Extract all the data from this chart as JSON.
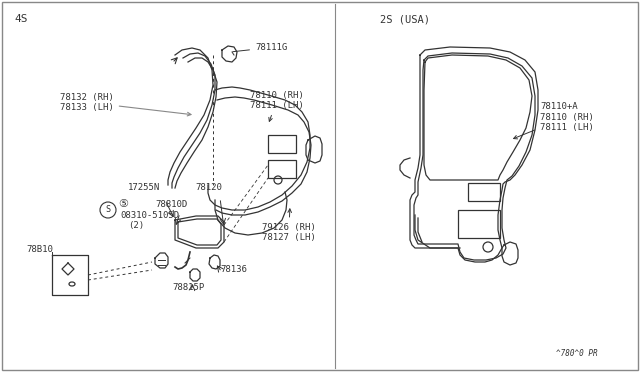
{
  "bg_color": "#f5f5f0",
  "line_color": "#555555",
  "text_color": "#444444",
  "border_color": "#aaaaaa",
  "diagram_code": "^780^0 PR",
  "left_label": "4S",
  "right_label": "2S (USA)"
}
